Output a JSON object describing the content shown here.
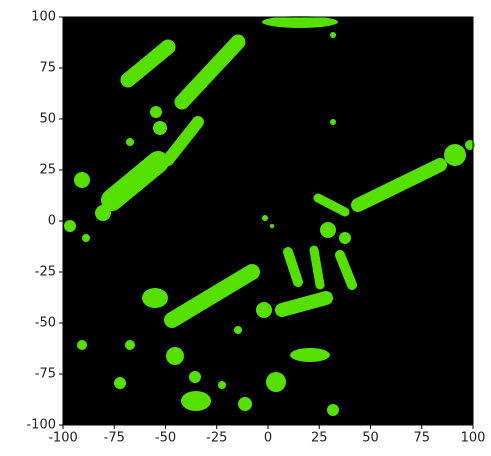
{
  "chart_data": {
    "type": "image",
    "color": "#55e000",
    "background": "#000000",
    "xlim": [
      -100,
      100
    ],
    "ylim": [
      -100,
      100
    ],
    "xticks": [
      -100,
      -75,
      -50,
      -25,
      0,
      25,
      50,
      75,
      100
    ],
    "yticks": [
      -100,
      -75,
      -50,
      -25,
      0,
      25,
      50,
      75,
      100
    ]
  }
}
